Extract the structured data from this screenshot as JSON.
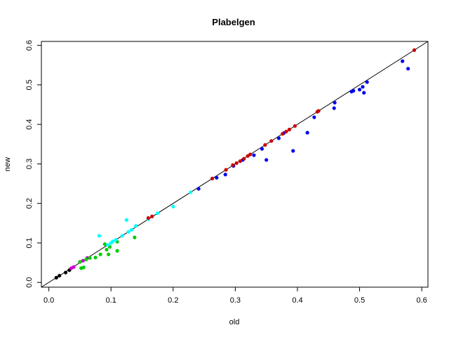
{
  "chart_data": {
    "type": "scatter",
    "title": "Plabelgen",
    "xlabel": "old",
    "ylabel": "new",
    "xlim": [
      -0.012,
      0.61
    ],
    "ylim": [
      -0.012,
      0.61
    ],
    "x_ticks": [
      "0.0",
      "0.1",
      "0.2",
      "0.3",
      "0.4",
      "0.5",
      "0.6"
    ],
    "y_ticks": [
      "0.0",
      "0.1",
      "0.2",
      "0.3",
      "0.4",
      "0.5",
      "0.6"
    ],
    "grid": false,
    "legend": "none",
    "reference_line": {
      "slope": 1,
      "intercept": 0,
      "color": "#000000"
    },
    "series": [
      {
        "color": "#000000",
        "points": [
          [
            0.012,
            0.012
          ],
          [
            0.017,
            0.017
          ],
          [
            0.027,
            0.025
          ],
          [
            0.033,
            0.031
          ]
        ]
      },
      {
        "color": "#cc00cc",
        "points": [
          [
            0.036,
            0.036
          ],
          [
            0.04,
            0.039
          ],
          [
            0.055,
            0.055
          ],
          [
            0.062,
            0.062
          ]
        ]
      },
      {
        "color": "#00cc00",
        "points": [
          [
            0.052,
            0.036
          ],
          [
            0.056,
            0.038
          ],
          [
            0.05,
            0.052
          ],
          [
            0.06,
            0.058
          ],
          [
            0.066,
            0.062
          ],
          [
            0.075,
            0.063
          ],
          [
            0.083,
            0.071
          ],
          [
            0.09,
            0.097
          ],
          [
            0.093,
            0.083
          ],
          [
            0.096,
            0.071
          ],
          [
            0.098,
            0.09
          ],
          [
            0.11,
            0.08
          ],
          [
            0.11,
            0.103
          ],
          [
            0.138,
            0.114
          ]
        ]
      },
      {
        "color": "#00ffff",
        "points": [
          [
            0.081,
            0.118
          ],
          [
            0.095,
            0.095
          ],
          [
            0.1,
            0.1
          ],
          [
            0.103,
            0.104
          ],
          [
            0.108,
            0.108
          ],
          [
            0.118,
            0.118
          ],
          [
            0.125,
            0.158
          ],
          [
            0.128,
            0.128
          ],
          [
            0.133,
            0.133
          ],
          [
            0.14,
            0.143
          ],
          [
            0.16,
            0.16
          ],
          [
            0.175,
            0.175
          ],
          [
            0.2,
            0.192
          ],
          [
            0.228,
            0.228
          ]
        ]
      },
      {
        "color": "#0000ee",
        "points": [
          [
            0.241,
            0.237
          ],
          [
            0.27,
            0.265
          ],
          [
            0.284,
            0.273
          ],
          [
            0.297,
            0.295
          ],
          [
            0.312,
            0.31
          ],
          [
            0.33,
            0.322
          ],
          [
            0.343,
            0.338
          ],
          [
            0.35,
            0.31
          ],
          [
            0.37,
            0.365
          ],
          [
            0.378,
            0.378
          ],
          [
            0.393,
            0.333
          ],
          [
            0.416,
            0.379
          ],
          [
            0.427,
            0.418
          ],
          [
            0.459,
            0.441
          ],
          [
            0.46,
            0.455
          ],
          [
            0.487,
            0.483
          ],
          [
            0.49,
            0.485
          ],
          [
            0.5,
            0.488
          ],
          [
            0.505,
            0.495
          ],
          [
            0.507,
            0.48
          ],
          [
            0.512,
            0.507
          ],
          [
            0.569,
            0.56
          ],
          [
            0.578,
            0.541
          ]
        ]
      },
      {
        "color": "#cc0000",
        "points": [
          [
            0.16,
            0.163
          ],
          [
            0.166,
            0.167
          ],
          [
            0.263,
            0.263
          ],
          [
            0.285,
            0.285
          ],
          [
            0.296,
            0.297
          ],
          [
            0.302,
            0.302
          ],
          [
            0.308,
            0.307
          ],
          [
            0.314,
            0.313
          ],
          [
            0.32,
            0.32
          ],
          [
            0.324,
            0.324
          ],
          [
            0.348,
            0.348
          ],
          [
            0.358,
            0.358
          ],
          [
            0.376,
            0.376
          ],
          [
            0.382,
            0.382
          ],
          [
            0.387,
            0.387
          ],
          [
            0.396,
            0.396
          ],
          [
            0.432,
            0.432
          ],
          [
            0.434,
            0.434
          ],
          [
            0.588,
            0.588
          ]
        ]
      }
    ]
  }
}
